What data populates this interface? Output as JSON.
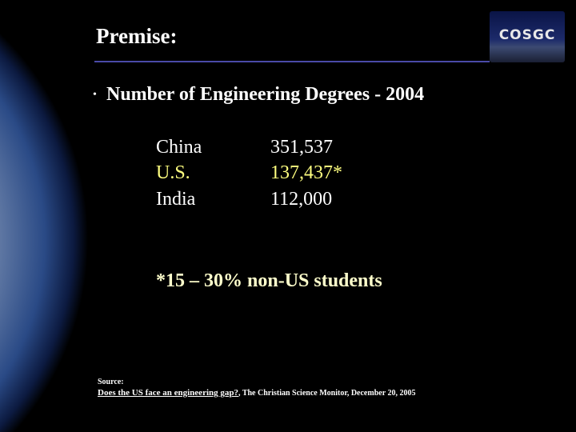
{
  "header": {
    "title": "Premise:",
    "logo": "COSGC"
  },
  "bullet": "Number of Engineering Degrees - 2004",
  "table": {
    "rows": [
      [
        "China",
        "351,537"
      ],
      [
        "U.S.",
        "137,437*"
      ],
      [
        "India",
        "112,000"
      ]
    ]
  },
  "note": "*15 – 30% non-US students",
  "source": {
    "label": "Source:",
    "link": "Does the US face an engineering gap?",
    "rest": ", The Christian Science Monitor, December 20, 2005"
  }
}
